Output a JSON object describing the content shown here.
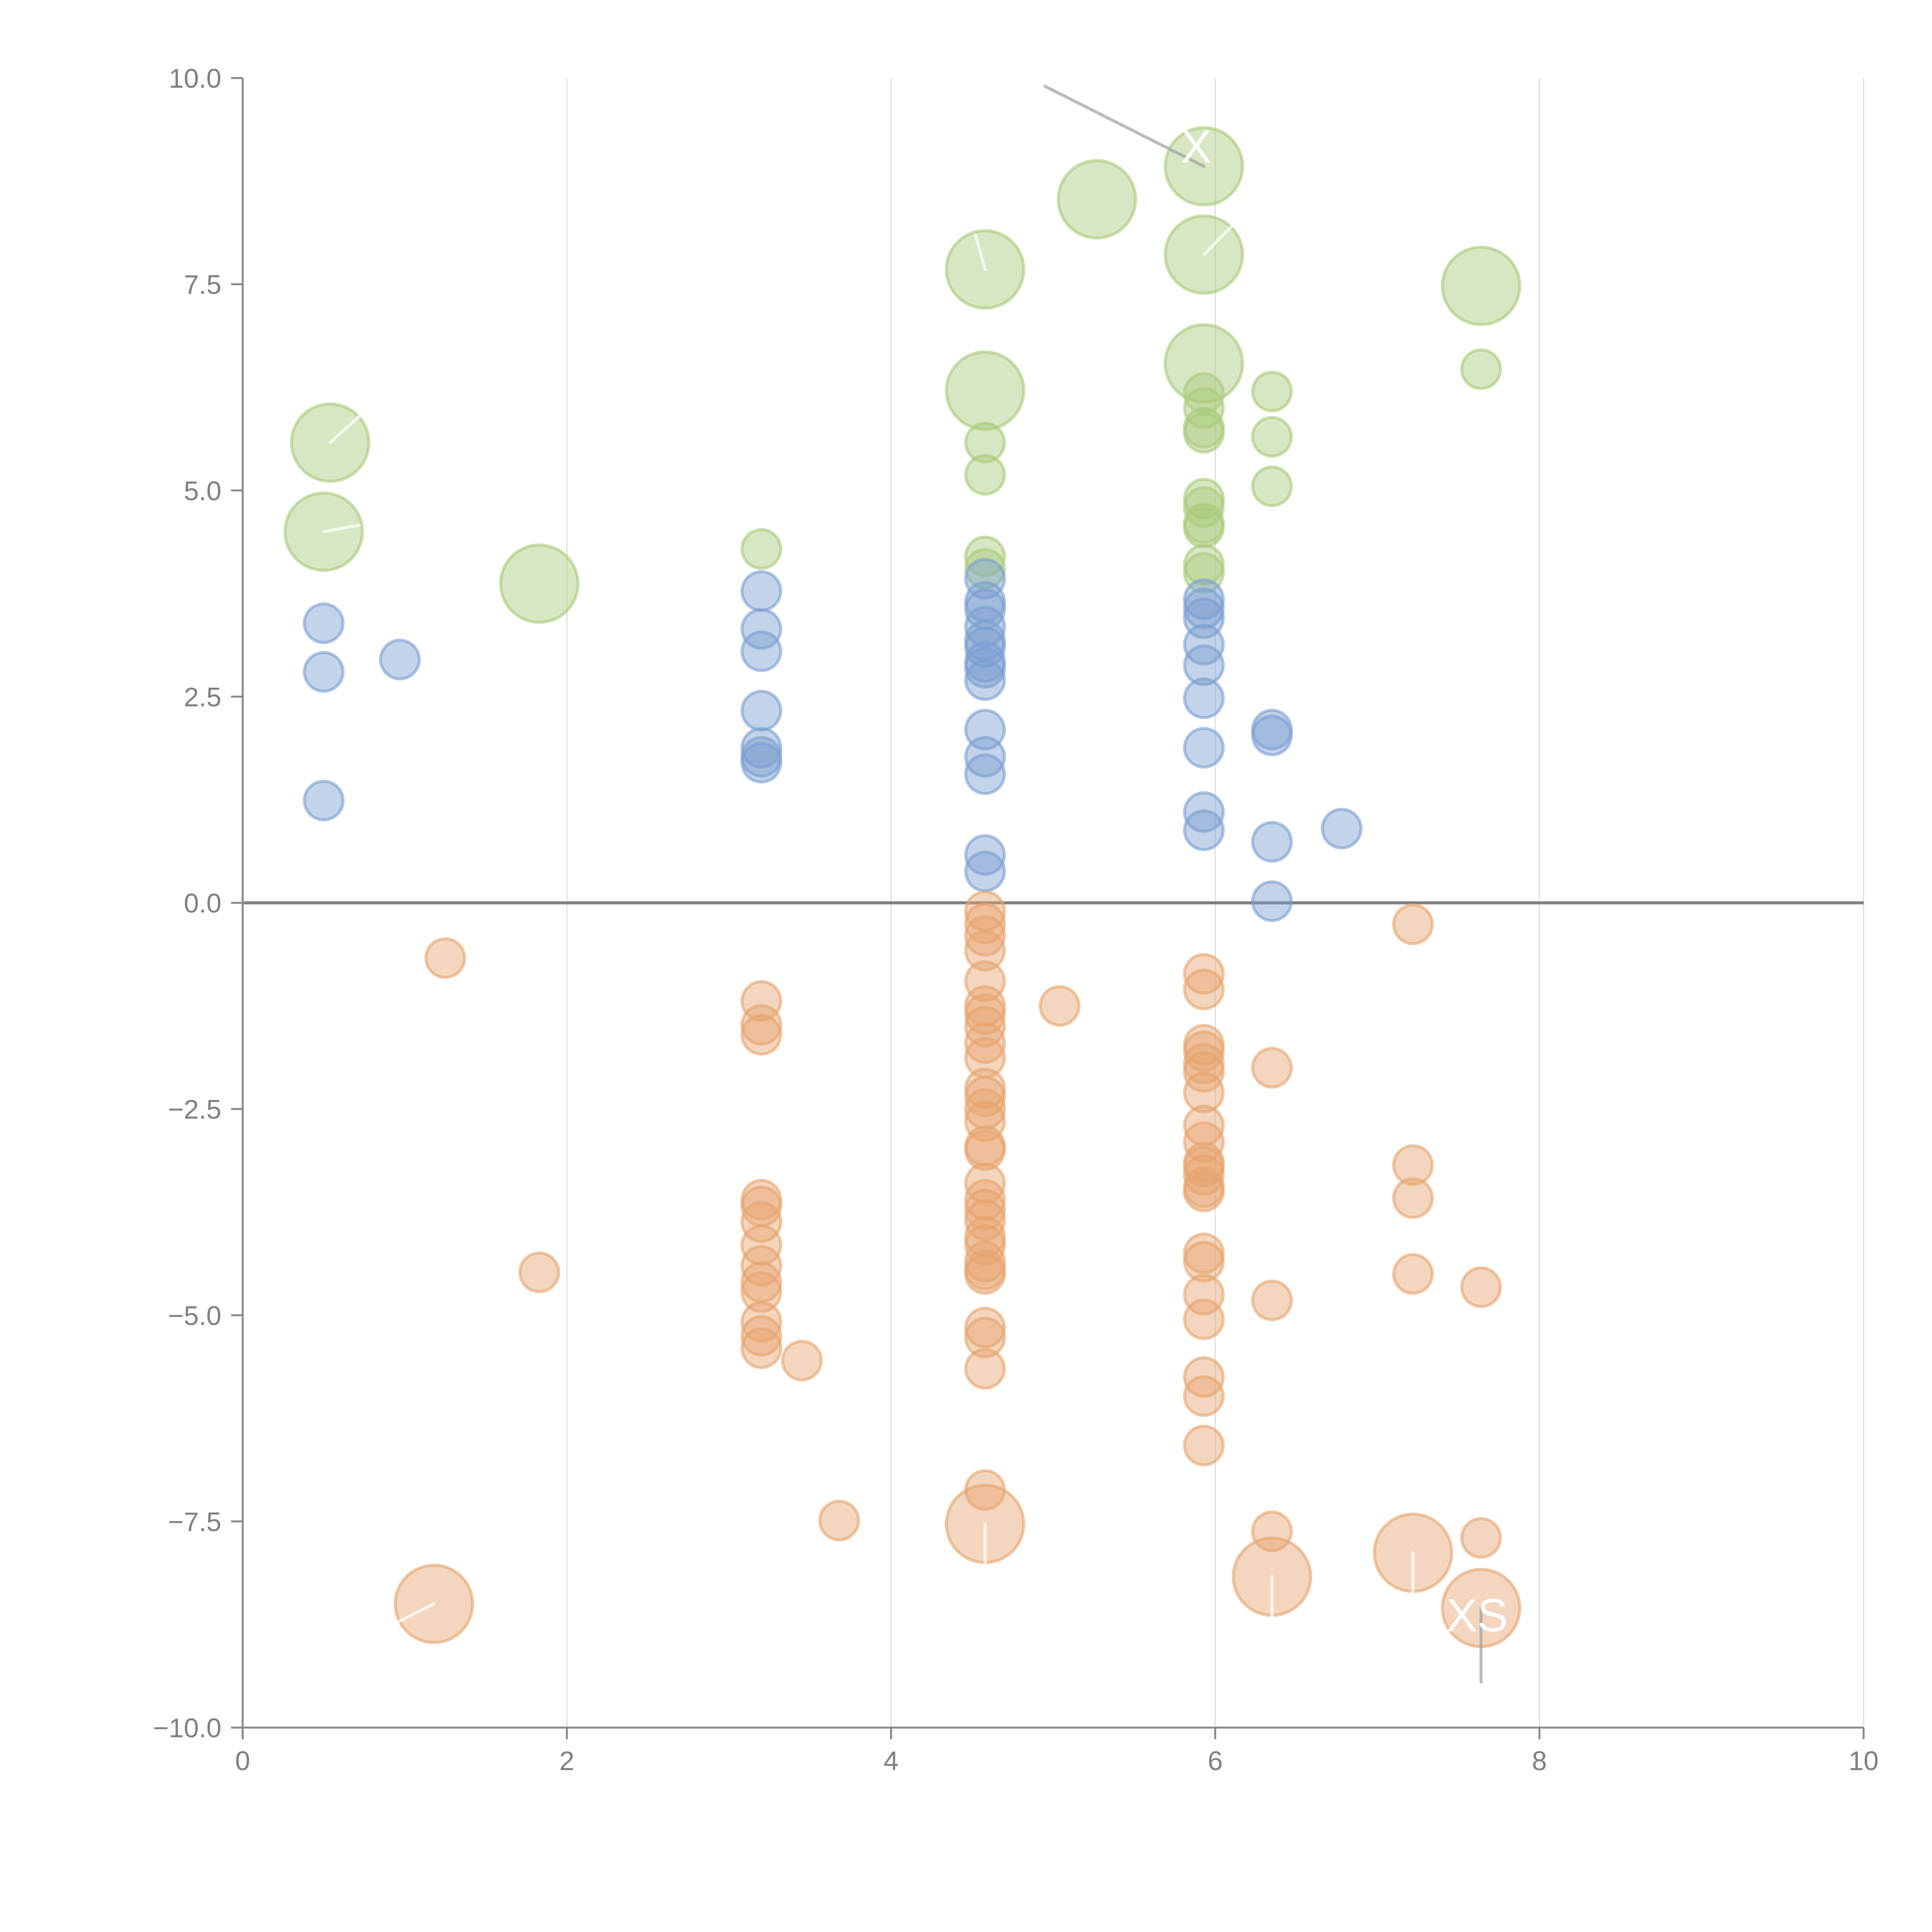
{
  "chart_data": {
    "type": "scatter",
    "subtype": "bubble",
    "title": "",
    "xlabel": "",
    "ylabel": "",
    "xlim": [
      0,
      10
    ],
    "ylim": [
      -10,
      10
    ],
    "grid": "vertical",
    "legend": "none",
    "zero_line": 0,
    "x_ticks": [
      "0",
      "2",
      "4",
      "6",
      "8",
      "10"
    ],
    "x_tick_values": [
      0,
      2,
      4,
      6,
      8,
      10
    ],
    "y_ticks": [
      "10.0",
      "7.5",
      "5.0",
      "2.5",
      "0.0",
      "−2.5",
      "−5.0",
      "−7.5",
      "−10.0"
    ],
    "y_tick_values": [
      10,
      7.5,
      5,
      2.5,
      0,
      -2.5,
      -5,
      -7.5,
      -10
    ],
    "series": [
      {
        "name": "green",
        "color": "#a9c97a",
        "points": [
          {
            "x": 0.54,
            "y": 5.58,
            "s": 3
          },
          {
            "x": 0.5,
            "y": 4.5,
            "s": 3
          },
          {
            "x": 1.83,
            "y": 3.87,
            "s": 3
          },
          {
            "x": 3.2,
            "y": 4.29,
            "s": 1
          },
          {
            "x": 4.58,
            "y": 7.68,
            "s": 3
          },
          {
            "x": 4.58,
            "y": 6.21,
            "s": 3
          },
          {
            "x": 4.58,
            "y": 5.58,
            "s": 1
          },
          {
            "x": 4.58,
            "y": 5.19,
            "s": 1
          },
          {
            "x": 4.58,
            "y": 4.2,
            "s": 1
          },
          {
            "x": 4.58,
            "y": 4.05,
            "s": 1
          },
          {
            "x": 5.27,
            "y": 8.53,
            "s": 3
          },
          {
            "x": 5.93,
            "y": 8.93,
            "s": 3
          },
          {
            "x": 5.93,
            "y": 7.86,
            "s": 3
          },
          {
            "x": 5.93,
            "y": 6.54,
            "s": 3
          },
          {
            "x": 5.93,
            "y": 6.18,
            "s": 1
          },
          {
            "x": 5.93,
            "y": 6.0,
            "s": 1
          },
          {
            "x": 5.93,
            "y": 5.76,
            "s": 1
          },
          {
            "x": 5.93,
            "y": 5.7,
            "s": 1
          },
          {
            "x": 5.93,
            "y": 4.9,
            "s": 1
          },
          {
            "x": 5.93,
            "y": 4.8,
            "s": 1
          },
          {
            "x": 5.93,
            "y": 4.6,
            "s": 1
          },
          {
            "x": 5.93,
            "y": 4.55,
            "s": 1
          },
          {
            "x": 5.93,
            "y": 4.1,
            "s": 1
          },
          {
            "x": 5.93,
            "y": 4.0,
            "s": 1
          },
          {
            "x": 6.35,
            "y": 6.2,
            "s": 1
          },
          {
            "x": 6.35,
            "y": 5.65,
            "s": 1
          },
          {
            "x": 6.35,
            "y": 5.05,
            "s": 1
          },
          {
            "x": 7.64,
            "y": 7.48,
            "s": 3
          },
          {
            "x": 7.64,
            "y": 6.47,
            "s": 1
          }
        ]
      },
      {
        "name": "blue",
        "color": "#7a9ed1",
        "points": [
          {
            "x": 0.5,
            "y": 3.39,
            "s": 1
          },
          {
            "x": 0.5,
            "y": 2.8,
            "s": 1
          },
          {
            "x": 0.5,
            "y": 1.24,
            "s": 1
          },
          {
            "x": 0.97,
            "y": 2.95,
            "s": 1
          },
          {
            "x": 3.2,
            "y": 3.78,
            "s": 1
          },
          {
            "x": 3.2,
            "y": 3.32,
            "s": 1
          },
          {
            "x": 3.2,
            "y": 3.05,
            "s": 1
          },
          {
            "x": 3.2,
            "y": 2.33,
            "s": 1
          },
          {
            "x": 3.2,
            "y": 1.88,
            "s": 1
          },
          {
            "x": 3.2,
            "y": 1.77,
            "s": 1
          },
          {
            "x": 3.2,
            "y": 1.7,
            "s": 1
          },
          {
            "x": 4.58,
            "y": 3.93,
            "s": 1
          },
          {
            "x": 4.58,
            "y": 3.65,
            "s": 1
          },
          {
            "x": 4.58,
            "y": 3.56,
            "s": 1
          },
          {
            "x": 4.58,
            "y": 3.35,
            "s": 1
          },
          {
            "x": 4.58,
            "y": 3.18,
            "s": 1
          },
          {
            "x": 4.58,
            "y": 3.1,
            "s": 1
          },
          {
            "x": 4.58,
            "y": 2.92,
            "s": 1
          },
          {
            "x": 4.58,
            "y": 2.85,
            "s": 1
          },
          {
            "x": 4.58,
            "y": 2.7,
            "s": 1
          },
          {
            "x": 4.58,
            "y": 2.1,
            "s": 1
          },
          {
            "x": 4.58,
            "y": 1.77,
            "s": 1
          },
          {
            "x": 4.58,
            "y": 1.56,
            "s": 1
          },
          {
            "x": 4.58,
            "y": 0.58,
            "s": 1
          },
          {
            "x": 4.58,
            "y": 0.38,
            "s": 1
          },
          {
            "x": 5.93,
            "y": 3.68,
            "s": 1
          },
          {
            "x": 5.93,
            "y": 3.57,
            "s": 1
          },
          {
            "x": 5.93,
            "y": 3.45,
            "s": 1
          },
          {
            "x": 5.93,
            "y": 3.13,
            "s": 1
          },
          {
            "x": 5.93,
            "y": 2.88,
            "s": 1
          },
          {
            "x": 5.93,
            "y": 2.48,
            "s": 1
          },
          {
            "x": 5.93,
            "y": 1.88,
            "s": 1
          },
          {
            "x": 5.93,
            "y": 1.1,
            "s": 1
          },
          {
            "x": 5.93,
            "y": 0.88,
            "s": 1
          },
          {
            "x": 6.35,
            "y": 2.1,
            "s": 1
          },
          {
            "x": 6.35,
            "y": 2.03,
            "s": 1
          },
          {
            "x": 6.35,
            "y": 0.74,
            "s": 1
          },
          {
            "x": 6.35,
            "y": 0.02,
            "s": 1
          },
          {
            "x": 6.78,
            "y": 0.9,
            "s": 1
          }
        ]
      },
      {
        "name": "orange",
        "color": "#e6a46e",
        "points": [
          {
            "x": 1.25,
            "y": -0.67,
            "s": 1
          },
          {
            "x": 1.18,
            "y": -8.5,
            "s": 3
          },
          {
            "x": 1.83,
            "y": -4.48,
            "s": 1
          },
          {
            "x": 3.2,
            "y": -1.19,
            "s": 1
          },
          {
            "x": 3.2,
            "y": -1.48,
            "s": 1
          },
          {
            "x": 3.2,
            "y": -1.6,
            "s": 1
          },
          {
            "x": 3.2,
            "y": -3.6,
            "s": 1
          },
          {
            "x": 3.2,
            "y": -3.68,
            "s": 1
          },
          {
            "x": 3.2,
            "y": -3.87,
            "s": 1
          },
          {
            "x": 3.2,
            "y": -4.15,
            "s": 1
          },
          {
            "x": 3.2,
            "y": -4.4,
            "s": 1
          },
          {
            "x": 3.2,
            "y": -4.6,
            "s": 1
          },
          {
            "x": 3.2,
            "y": -4.72,
            "s": 1
          },
          {
            "x": 3.2,
            "y": -5.08,
            "s": 1
          },
          {
            "x": 3.2,
            "y": -5.25,
            "s": 1
          },
          {
            "x": 3.2,
            "y": -5.4,
            "s": 1
          },
          {
            "x": 3.45,
            "y": -5.55,
            "s": 1
          },
          {
            "x": 3.68,
            "y": -7.49,
            "s": 1
          },
          {
            "x": 4.58,
            "y": -0.1,
            "s": 1
          },
          {
            "x": 4.58,
            "y": -0.25,
            "s": 1
          },
          {
            "x": 4.58,
            "y": -0.4,
            "s": 1
          },
          {
            "x": 4.58,
            "y": -0.58,
            "s": 1
          },
          {
            "x": 4.58,
            "y": -0.95,
            "s": 1
          },
          {
            "x": 4.58,
            "y": -1.25,
            "s": 1
          },
          {
            "x": 4.58,
            "y": -1.35,
            "s": 1
          },
          {
            "x": 4.58,
            "y": -1.5,
            "s": 1
          },
          {
            "x": 4.58,
            "y": -1.7,
            "s": 1
          },
          {
            "x": 4.58,
            "y": -1.88,
            "s": 1
          },
          {
            "x": 4.58,
            "y": -2.25,
            "s": 1
          },
          {
            "x": 4.58,
            "y": -2.35,
            "s": 1
          },
          {
            "x": 4.58,
            "y": -2.5,
            "s": 1
          },
          {
            "x": 4.58,
            "y": -2.65,
            "s": 1
          },
          {
            "x": 4.58,
            "y": -2.95,
            "s": 1
          },
          {
            "x": 4.58,
            "y": -3.0,
            "s": 1
          },
          {
            "x": 4.58,
            "y": -3.4,
            "s": 1
          },
          {
            "x": 4.58,
            "y": -3.6,
            "s": 1
          },
          {
            "x": 4.58,
            "y": -3.72,
            "s": 1
          },
          {
            "x": 4.58,
            "y": -3.85,
            "s": 1
          },
          {
            "x": 4.58,
            "y": -4.05,
            "s": 1
          },
          {
            "x": 4.58,
            "y": -4.15,
            "s": 1
          },
          {
            "x": 4.58,
            "y": -4.35,
            "s": 1
          },
          {
            "x": 4.58,
            "y": -4.45,
            "s": 1
          },
          {
            "x": 4.58,
            "y": -4.5,
            "s": 1
          },
          {
            "x": 4.58,
            "y": -5.15,
            "s": 1
          },
          {
            "x": 4.58,
            "y": -5.27,
            "s": 1
          },
          {
            "x": 4.58,
            "y": -5.65,
            "s": 1
          },
          {
            "x": 4.58,
            "y": -7.12,
            "s": 1
          },
          {
            "x": 4.58,
            "y": -7.53,
            "s": 3
          },
          {
            "x": 5.04,
            "y": -1.25,
            "s": 1
          },
          {
            "x": 5.93,
            "y": -0.86,
            "s": 1
          },
          {
            "x": 5.93,
            "y": -1.05,
            "s": 1
          },
          {
            "x": 5.93,
            "y": -1.72,
            "s": 1
          },
          {
            "x": 5.93,
            "y": -1.8,
            "s": 1
          },
          {
            "x": 5.93,
            "y": -1.95,
            "s": 1
          },
          {
            "x": 5.93,
            "y": -2.05,
            "s": 1
          },
          {
            "x": 5.93,
            "y": -2.3,
            "s": 1
          },
          {
            "x": 5.93,
            "y": -2.7,
            "s": 1
          },
          {
            "x": 5.93,
            "y": -2.9,
            "s": 1
          },
          {
            "x": 5.93,
            "y": -3.15,
            "s": 1
          },
          {
            "x": 5.93,
            "y": -3.2,
            "s": 1
          },
          {
            "x": 5.93,
            "y": -3.3,
            "s": 1
          },
          {
            "x": 5.93,
            "y": -3.45,
            "s": 1
          },
          {
            "x": 5.93,
            "y": -3.5,
            "s": 1
          },
          {
            "x": 5.93,
            "y": -4.25,
            "s": 1
          },
          {
            "x": 5.93,
            "y": -4.35,
            "s": 1
          },
          {
            "x": 5.93,
            "y": -4.75,
            "s": 1
          },
          {
            "x": 5.93,
            "y": -5.05,
            "s": 1
          },
          {
            "x": 5.93,
            "y": -5.75,
            "s": 1
          },
          {
            "x": 5.93,
            "y": -5.98,
            "s": 1
          },
          {
            "x": 5.93,
            "y": -6.58,
            "s": 1
          },
          {
            "x": 6.35,
            "y": -2.0,
            "s": 1
          },
          {
            "x": 6.35,
            "y": -4.82,
            "s": 1
          },
          {
            "x": 6.35,
            "y": -7.62,
            "s": 1
          },
          {
            "x": 6.35,
            "y": -8.17,
            "s": 3
          },
          {
            "x": 7.22,
            "y": -0.26,
            "s": 1
          },
          {
            "x": 7.22,
            "y": -3.18,
            "s": 1
          },
          {
            "x": 7.22,
            "y": -3.58,
            "s": 1
          },
          {
            "x": 7.22,
            "y": -4.5,
            "s": 1
          },
          {
            "x": 7.22,
            "y": -7.88,
            "s": 3
          },
          {
            "x": 7.64,
            "y": -4.66,
            "s": 1
          },
          {
            "x": 7.64,
            "y": -7.7,
            "s": 1
          },
          {
            "x": 7.64,
            "y": -8.55,
            "s": 3
          }
        ]
      }
    ],
    "annotations": [
      {
        "text": "X",
        "x": 5.93,
        "y": 8.93,
        "label_x": 4.95,
        "label_y": 9.9,
        "visible": true
      },
      {
        "text": "XS",
        "x": 7.64,
        "y": -8.55,
        "label_x": 7.64,
        "label_y": -9.45,
        "visible": true
      },
      {
        "text": "",
        "x": 4.58,
        "y": 7.68,
        "label_x": 4.52,
        "label_y": 8.1,
        "visible": false
      },
      {
        "text": "",
        "x": 5.93,
        "y": 7.86,
        "label_x": 6.1,
        "label_y": 8.2,
        "visible": false
      },
      {
        "text": "",
        "x": 0.54,
        "y": 5.58,
        "label_x": 0.72,
        "label_y": 5.9,
        "visible": false
      },
      {
        "text": "",
        "x": 0.5,
        "y": 4.5,
        "label_x": 0.72,
        "label_y": 4.58,
        "visible": false
      },
      {
        "text": "",
        "x": 1.18,
        "y": -8.5,
        "label_x": 0.22,
        "label_y": -9.45,
        "visible": false
      },
      {
        "text": "",
        "x": 4.58,
        "y": -7.53,
        "label_x": 4.58,
        "label_y": -8.45,
        "visible": false
      },
      {
        "text": "",
        "x": 6.35,
        "y": -8.17,
        "label_x": 6.35,
        "label_y": -9.1,
        "visible": false
      },
      {
        "text": "",
        "x": 7.22,
        "y": -7.88,
        "label_x": 7.22,
        "label_y": -8.8,
        "visible": false
      }
    ]
  }
}
